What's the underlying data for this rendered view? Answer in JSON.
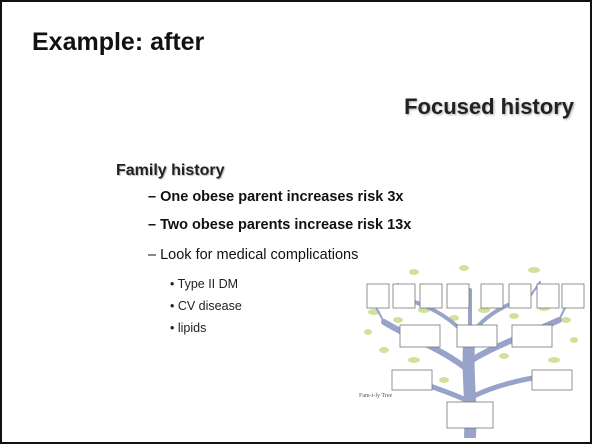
{
  "header": {
    "title": "Example: after",
    "subtitle": "Focused history"
  },
  "section": {
    "heading": "Family history",
    "bullets": [
      "– One obese parent increases risk 3x",
      "– Two obese parents increase risk 13x",
      "– Look for medical complications"
    ],
    "sub_bullets": [
      "• Type II DM",
      "• CV disease",
      "• lipids"
    ]
  },
  "image": {
    "caption": "Fam-i-ly Tree"
  }
}
